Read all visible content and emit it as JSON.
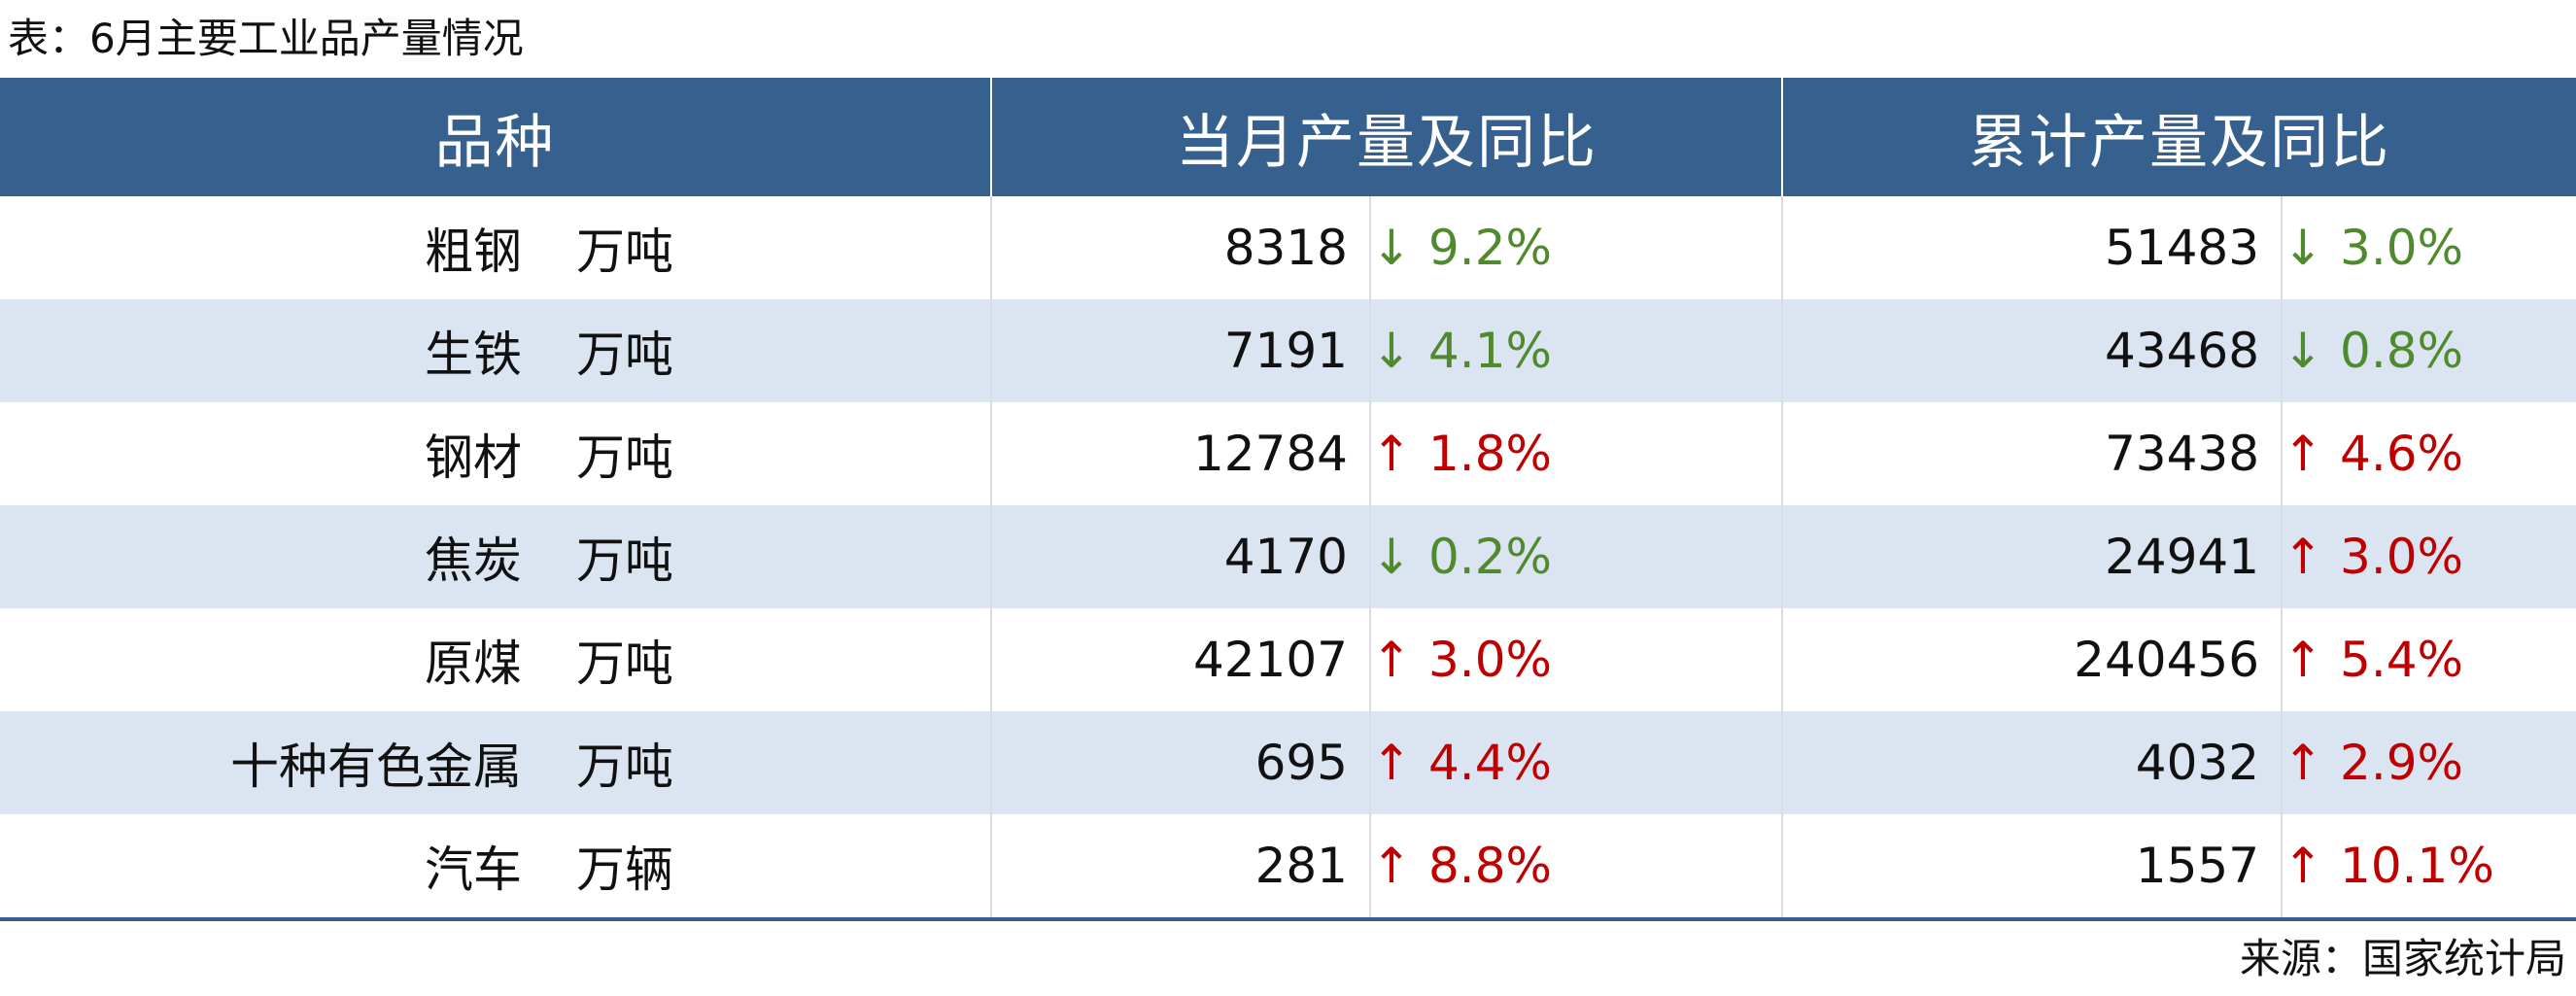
{
  "caption": "表：6月主要工业品产量情况",
  "source": "来源：国家统计局",
  "headers": {
    "variety": "品种",
    "month": "当月产量及同比",
    "cumulative": "累计产量及同比"
  },
  "colors": {
    "header_bg": "#36618f",
    "row_alt_bg": "#dbe5f1",
    "down": "#4f8a2c",
    "up": "#c00000"
  },
  "rows": [
    {
      "name": "粗钢",
      "unit": "万吨",
      "month_value": "8318",
      "month_arrow": "↓",
      "month_pct": "9.2%",
      "cum_value": "51483",
      "cum_arrow": "↓",
      "cum_pct": "3.0%"
    },
    {
      "name": "生铁",
      "unit": "万吨",
      "month_value": "7191",
      "month_arrow": "↓",
      "month_pct": "4.1%",
      "cum_value": "43468",
      "cum_arrow": "↓",
      "cum_pct": "0.8%"
    },
    {
      "name": "钢材",
      "unit": "万吨",
      "month_value": "12784",
      "month_arrow": "↑",
      "month_pct": "1.8%",
      "cum_value": "73438",
      "cum_arrow": "↑",
      "cum_pct": "4.6%"
    },
    {
      "name": "焦炭",
      "unit": "万吨",
      "month_value": "4170",
      "month_arrow": "↓",
      "month_pct": "0.2%",
      "cum_value": "24941",
      "cum_arrow": "↑",
      "cum_pct": "3.0%"
    },
    {
      "name": "原煤",
      "unit": "万吨",
      "month_value": "42107",
      "month_arrow": "↑",
      "month_pct": "3.0%",
      "cum_value": "240456",
      "cum_arrow": "↑",
      "cum_pct": "5.4%"
    },
    {
      "name": "十种有色金属",
      "unit": "万吨",
      "month_value": "695",
      "month_arrow": "↑",
      "month_pct": "4.4%",
      "cum_value": "4032",
      "cum_arrow": "↑",
      "cum_pct": "2.9%"
    },
    {
      "name": "汽车",
      "unit": "万辆",
      "month_value": "281",
      "month_arrow": "↑",
      "month_pct": "8.8%",
      "cum_value": "1557",
      "cum_arrow": "↑",
      "cum_pct": "10.1%"
    }
  ]
}
